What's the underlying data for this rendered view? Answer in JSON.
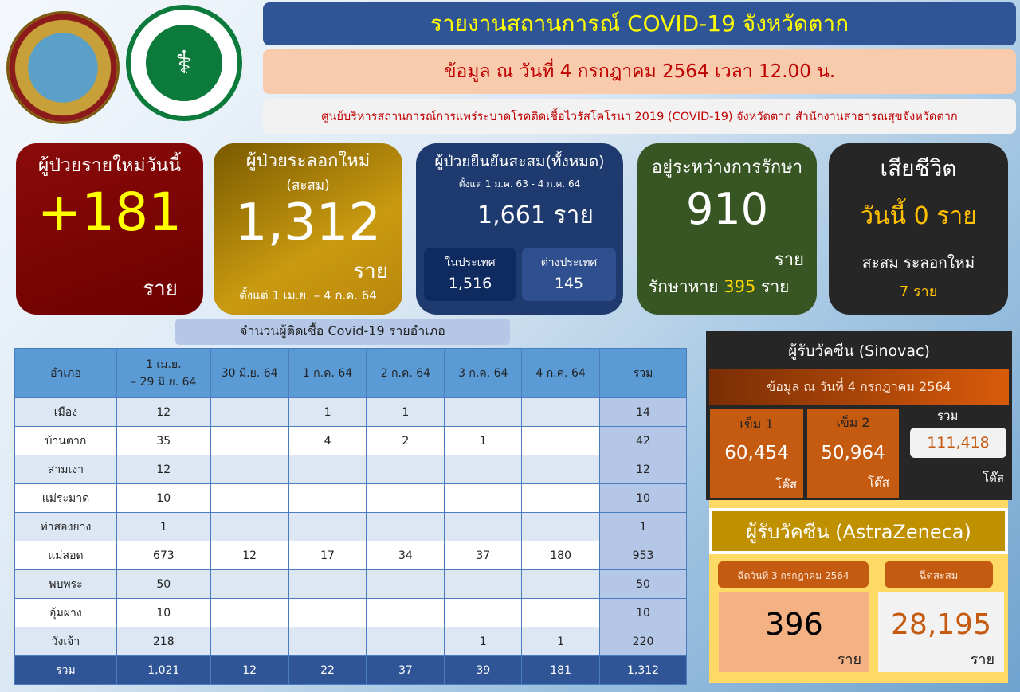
{
  "logos": {
    "province_seal_text": "จังหวัดตาก",
    "moph_text_th": "กระทรวงสาธารณสุข",
    "moph_text_en": "MINISTRY OF PUBLIC HEALTH"
  },
  "header": {
    "title": "รายงานสถานการณ์ COVID-19 จังหวัดตาก",
    "date": "ข้อมูล ณ วันที่ 4 กรกฎาคม 2564 เวลา 12.00 น.",
    "org": "ศูนย์บริหารสถานการณ์การแพร่ระบาดโรคติดเชื้อไวรัสโคโรนา 2019 (COVID-19) จังหวัดตาก สำนักงานสาธารณสุขจังหวัดตาก"
  },
  "cards": {
    "new_today": {
      "title": "ผู้ป่วยรายใหม่วันนี้",
      "value": "+181",
      "unit": "ราย"
    },
    "wave": {
      "title": "ผู้ป่วยระลอกใหม่",
      "subtitle": "(สะสม)",
      "value": "1,312",
      "unit": "ราย",
      "period": "ตั้งแต่ 1 เม.ย. – 4 ก.ค. 64"
    },
    "cumulative": {
      "title": "ผู้ป่วยยืนยันสะสม(ทั้งหมด)",
      "period": "ตั้งแต่ 1 ม.ค. 63 -  4 ก.ค. 64",
      "value": "1,661 ราย",
      "domestic_label": "ในประเทศ",
      "domestic": "1,516",
      "foreign_label": "ต่างประเทศ",
      "foreign": "145"
    },
    "treating": {
      "title": "อยู่ระหว่างการรักษา",
      "value": "910",
      "unit": "ราย",
      "recovered_label": "รักษาหาย",
      "recovered": "395",
      "recovered_unit": "ราย"
    },
    "deaths": {
      "title": "เสียชีวิต",
      "today_label": "วันนี้",
      "today": "0",
      "today_unit": "ราย",
      "wave_label": "สะสม ระลอกใหม่",
      "wave": "7 ราย"
    }
  },
  "table": {
    "caption": "จำนวนผู้ติดเชื้อ  Covid-19 รายอำเภอ",
    "headers": [
      "อำเภอ",
      "1 เม.ย.\n– 29 มิ.ย. 64",
      "30 มิ.ย. 64",
      "1 ก.ค. 64",
      "2 ก.ค. 64",
      "3 ก.ค. 64",
      "4 ก.ค. 64",
      "รวม"
    ],
    "rows": [
      [
        "เมือง",
        "12",
        "",
        "1",
        "1",
        "",
        "",
        "14"
      ],
      [
        "บ้านตาก",
        "35",
        "",
        "4",
        "2",
        "1",
        "",
        "42"
      ],
      [
        "สามเงา",
        "12",
        "",
        "",
        "",
        "",
        "",
        "12"
      ],
      [
        "แม่ระมาด",
        "10",
        "",
        "",
        "",
        "",
        "",
        "10"
      ],
      [
        "ท่าสองยาง",
        "1",
        "",
        "",
        "",
        "",
        "",
        "1"
      ],
      [
        "แม่สอด",
        "673",
        "12",
        "17",
        "34",
        "37",
        "180",
        "953"
      ],
      [
        "พบพระ",
        "50",
        "",
        "",
        "",
        "",
        "",
        "50"
      ],
      [
        "อุ้มผาง",
        "10",
        "",
        "",
        "",
        "",
        "",
        "10"
      ],
      [
        "วังเจ้า",
        "218",
        "",
        "",
        "",
        "1",
        "1",
        "220"
      ]
    ],
    "footer": [
      "รวม",
      "1,021",
      "12",
      "22",
      "37",
      "39",
      "181",
      "1,312"
    ]
  },
  "sinovac": {
    "title": "ผู้รับวัคซีน  (Sinovac)",
    "date": "ข้อมูล ณ วันที่ 4 กรกฎาคม 2564",
    "dose1_label": "เข็ม 1",
    "dose1": "60,454",
    "dose2_label": "เข็ม 2",
    "dose2": "50,964",
    "total_label": "รวม",
    "total": "111,418",
    "unit": "โด๊ส"
  },
  "astrazeneca": {
    "title": "ผู้รับวัคซีน  (AstraZeneca)",
    "day_label": "ฉีดวันที่ 3 กรกฎาคม 2564",
    "day_value": "396",
    "cum_label": "ฉีดสะสม",
    "cum_value": "28,195",
    "unit": "ราย"
  },
  "colors": {
    "title_bar": "#2f5597",
    "title_text": "#ffff00",
    "date_bar": "#f8cbad",
    "alert_red": "#c00000",
    "card_red": "#7b0000",
    "card_gold": "#b8860b",
    "card_navy": "#1f3a6e",
    "card_green": "#375623",
    "card_dark": "#262626",
    "vaccine_orange": "#c55a11"
  }
}
